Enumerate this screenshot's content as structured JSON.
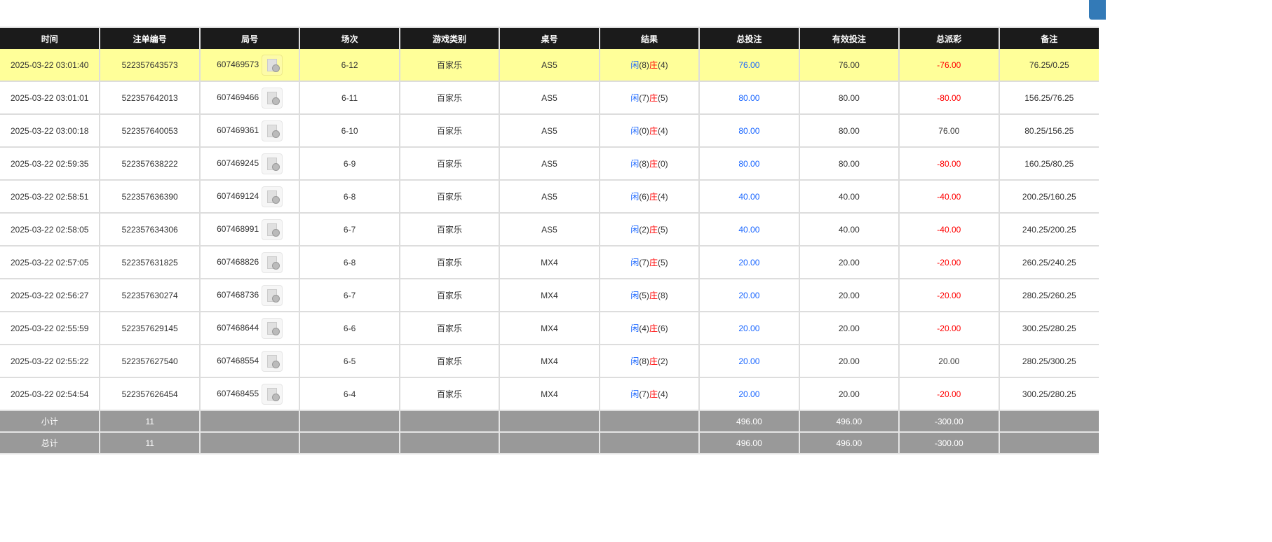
{
  "headers": [
    "时间",
    "注单编号",
    "局号",
    "场次",
    "游戏类别",
    "桌号",
    "结果",
    "总投注",
    "有效投注",
    "总派彩",
    "备注"
  ],
  "result_labels": {
    "player": "闲",
    "banker": "庄"
  },
  "colors": {
    "header_bg": "#1b1b1b",
    "highlight_row": "#ffff99",
    "summary_bg": "#999999",
    "blue": "#1a66ff",
    "red": "#ff0000",
    "top_button": "#337ab7"
  },
  "rows": [
    {
      "time": "2025-03-22 03:01:40",
      "bet_id": "522357643573",
      "round": "607469573",
      "shoe": "6-12",
      "game": "百家乐",
      "table": "AS5",
      "player": "(8)",
      "banker": "(4)",
      "total_bet": "76.00",
      "valid_bet": "76.00",
      "payout": "-76.00",
      "payout_negative": true,
      "note": "76.25/0.25",
      "highlight": true
    },
    {
      "time": "2025-03-22 03:01:01",
      "bet_id": "522357642013",
      "round": "607469466",
      "shoe": "6-11",
      "game": "百家乐",
      "table": "AS5",
      "player": "(7)",
      "banker": "(5)",
      "total_bet": "80.00",
      "valid_bet": "80.00",
      "payout": "-80.00",
      "payout_negative": true,
      "note": "156.25/76.25"
    },
    {
      "time": "2025-03-22 03:00:18",
      "bet_id": "522357640053",
      "round": "607469361",
      "shoe": "6-10",
      "game": "百家乐",
      "table": "AS5",
      "player": "(0)",
      "banker": "(4)",
      "total_bet": "80.00",
      "valid_bet": "80.00",
      "payout": "76.00",
      "payout_negative": false,
      "note": "80.25/156.25"
    },
    {
      "time": "2025-03-22 02:59:35",
      "bet_id": "522357638222",
      "round": "607469245",
      "shoe": "6-9",
      "game": "百家乐",
      "table": "AS5",
      "player": "(8)",
      "banker": "(0)",
      "total_bet": "80.00",
      "valid_bet": "80.00",
      "payout": "-80.00",
      "payout_negative": true,
      "note": "160.25/80.25"
    },
    {
      "time": "2025-03-22 02:58:51",
      "bet_id": "522357636390",
      "round": "607469124",
      "shoe": "6-8",
      "game": "百家乐",
      "table": "AS5",
      "player": "(6)",
      "banker": "(4)",
      "total_bet": "40.00",
      "valid_bet": "40.00",
      "payout": "-40.00",
      "payout_negative": true,
      "note": "200.25/160.25"
    },
    {
      "time": "2025-03-22 02:58:05",
      "bet_id": "522357634306",
      "round": "607468991",
      "shoe": "6-7",
      "game": "百家乐",
      "table": "AS5",
      "player": "(2)",
      "banker": "(5)",
      "total_bet": "40.00",
      "valid_bet": "40.00",
      "payout": "-40.00",
      "payout_negative": true,
      "note": "240.25/200.25"
    },
    {
      "time": "2025-03-22 02:57:05",
      "bet_id": "522357631825",
      "round": "607468826",
      "shoe": "6-8",
      "game": "百家乐",
      "table": "MX4",
      "player": "(7)",
      "banker": "(5)",
      "total_bet": "20.00",
      "valid_bet": "20.00",
      "payout": "-20.00",
      "payout_negative": true,
      "note": "260.25/240.25"
    },
    {
      "time": "2025-03-22 02:56:27",
      "bet_id": "522357630274",
      "round": "607468736",
      "shoe": "6-7",
      "game": "百家乐",
      "table": "MX4",
      "player": "(5)",
      "banker": "(8)",
      "total_bet": "20.00",
      "valid_bet": "20.00",
      "payout": "-20.00",
      "payout_negative": true,
      "note": "280.25/260.25"
    },
    {
      "time": "2025-03-22 02:55:59",
      "bet_id": "522357629145",
      "round": "607468644",
      "shoe": "6-6",
      "game": "百家乐",
      "table": "MX4",
      "player": "(4)",
      "banker": "(6)",
      "total_bet": "20.00",
      "valid_bet": "20.00",
      "payout": "-20.00",
      "payout_negative": true,
      "note": "300.25/280.25"
    },
    {
      "time": "2025-03-22 02:55:22",
      "bet_id": "522357627540",
      "round": "607468554",
      "shoe": "6-5",
      "game": "百家乐",
      "table": "MX4",
      "player": "(8)",
      "banker": "(2)",
      "total_bet": "20.00",
      "valid_bet": "20.00",
      "payout": "20.00",
      "payout_negative": false,
      "note": "280.25/300.25"
    },
    {
      "time": "2025-03-22 02:54:54",
      "bet_id": "522357626454",
      "round": "607468455",
      "shoe": "6-4",
      "game": "百家乐",
      "table": "MX4",
      "player": "(7)",
      "banker": "(4)",
      "total_bet": "20.00",
      "valid_bet": "20.00",
      "payout": "-20.00",
      "payout_negative": true,
      "note": "300.25/280.25"
    }
  ],
  "summary": [
    {
      "label": "小计",
      "count": "11",
      "total_bet": "496.00",
      "valid_bet": "496.00",
      "payout": "-300.00"
    },
    {
      "label": "总计",
      "count": "11",
      "total_bet": "496.00",
      "valid_bet": "496.00",
      "payout": "-300.00"
    }
  ]
}
